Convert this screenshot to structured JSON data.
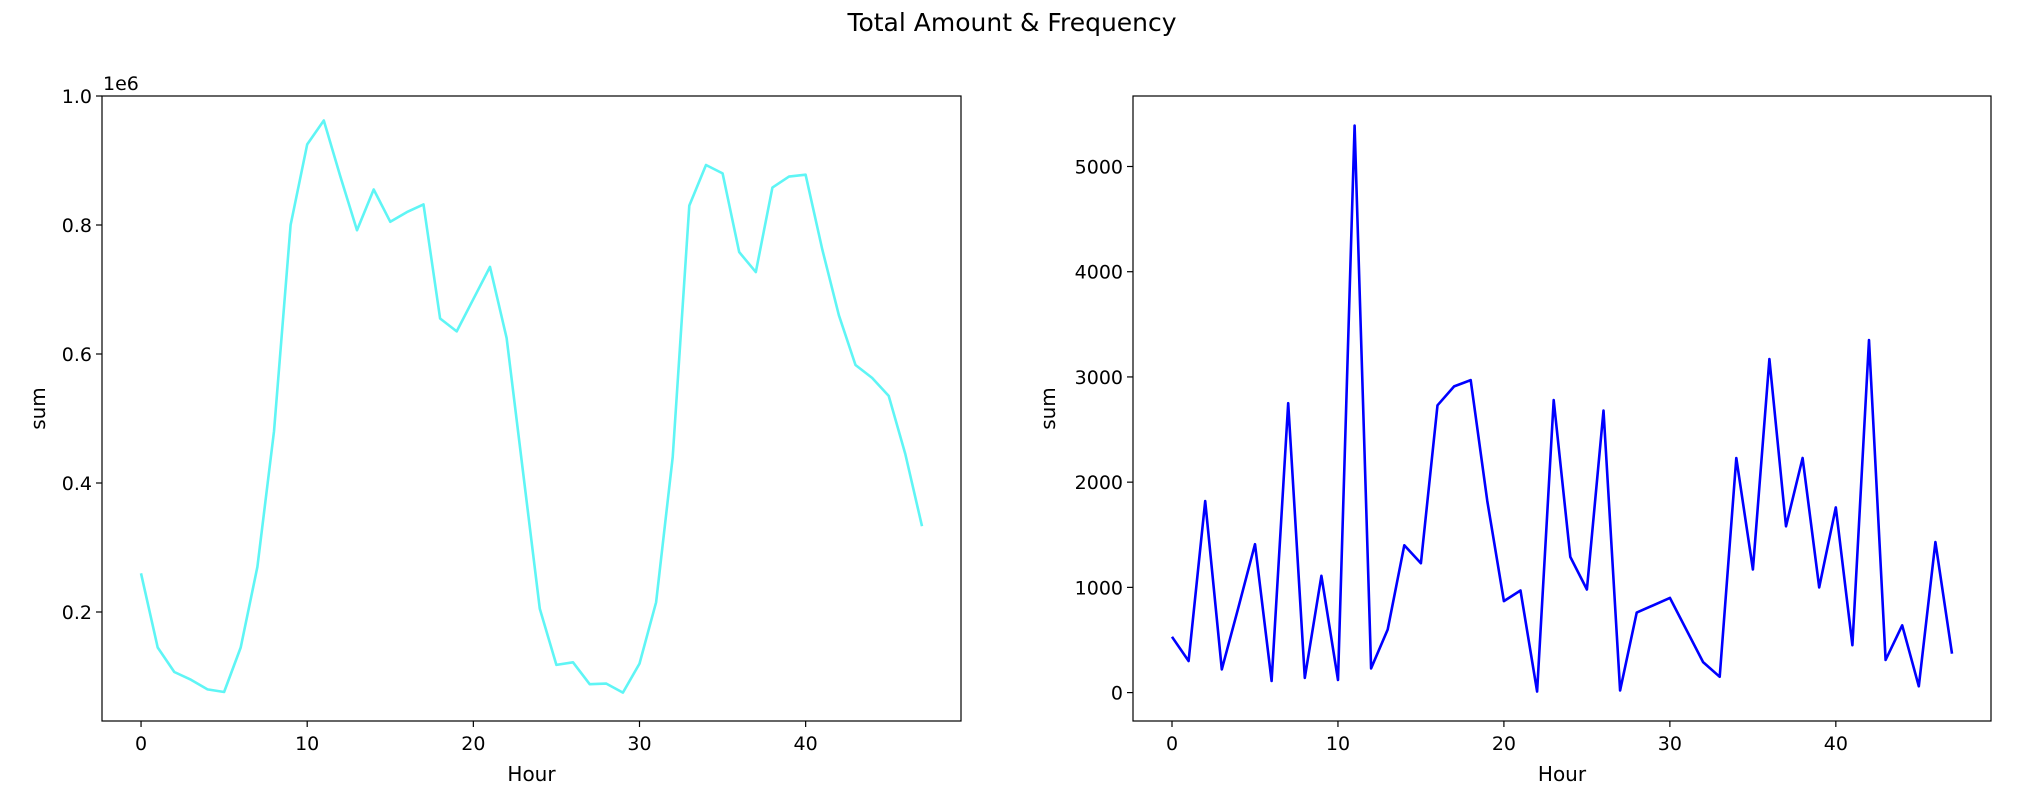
{
  "figure": {
    "title": "Total Amount & Frequency"
  },
  "chart_data": [
    {
      "type": "line",
      "xlabel": "Hour",
      "ylabel": "sum",
      "offset_text": "1e6",
      "xlim": [
        -2.35,
        49.35
      ],
      "ylim": [
        0.031,
        1.0
      ],
      "xticks": [
        0,
        10,
        20,
        30,
        40
      ],
      "yticks": [
        0.2,
        0.4,
        0.6,
        0.8,
        1.0
      ],
      "ytick_labels": [
        "0.2",
        "0.4",
        "0.6",
        "0.8",
        "1.0"
      ],
      "grid": false,
      "color": "#5ff5f5",
      "series": [
        {
          "x": [
            0,
            1,
            2,
            3,
            4,
            5,
            6,
            7,
            8,
            9,
            10,
            11,
            12,
            13,
            14,
            15,
            16,
            17,
            18,
            19,
            20,
            21,
            22,
            23,
            24,
            25,
            26,
            27,
            28,
            29,
            30,
            31,
            32,
            33,
            34,
            35,
            36,
            37,
            38,
            39,
            40,
            41,
            42,
            43,
            44,
            45,
            46,
            47
          ],
          "y": [
            0.26,
            0.145,
            0.107,
            0.095,
            0.08,
            0.076,
            0.145,
            0.27,
            0.48,
            0.8,
            0.925,
            0.962,
            0.875,
            0.792,
            0.855,
            0.805,
            0.82,
            0.832,
            0.655,
            0.635,
            0.685,
            0.735,
            0.625,
            0.415,
            0.205,
            0.118,
            0.122,
            0.088,
            0.089,
            0.075,
            0.12,
            0.215,
            0.44,
            0.83,
            0.893,
            0.88,
            0.758,
            0.727,
            0.858,
            0.875,
            0.878,
            0.762,
            0.66,
            0.583,
            0.563,
            0.535,
            0.445,
            0.333
          ]
        }
      ]
    },
    {
      "type": "line",
      "xlabel": "Hour",
      "ylabel": "sum",
      "xlim": [
        -2.35,
        49.35
      ],
      "ylim": [
        -270,
        5670
      ],
      "xticks": [
        0,
        10,
        20,
        30,
        40
      ],
      "yticks": [
        0,
        1000,
        2000,
        3000,
        4000,
        5000
      ],
      "ytick_labels": [
        "0",
        "1000",
        "2000",
        "3000",
        "4000",
        "5000"
      ],
      "grid": false,
      "color": "#0000ff",
      "series": [
        {
          "x": [
            0,
            1,
            2,
            3,
            4,
            5,
            6,
            7,
            8,
            9,
            10,
            11,
            12,
            13,
            14,
            15,
            16,
            17,
            18,
            19,
            20,
            21,
            22,
            23,
            24,
            25,
            26,
            27,
            28,
            30,
            32,
            33,
            34,
            35,
            36,
            37,
            38,
            39,
            40,
            41,
            42,
            43,
            44,
            45,
            46,
            47
          ],
          "y": [
            530,
            300,
            1820,
            220,
            810,
            1410,
            110,
            2750,
            140,
            1110,
            120,
            5390,
            230,
            600,
            1400,
            1230,
            2730,
            2910,
            2970,
            1820,
            870,
            970,
            10,
            2780,
            1290,
            980,
            2680,
            20,
            760,
            900,
            290,
            150,
            2230,
            1170,
            3170,
            1580,
            2230,
            1000,
            1760,
            450,
            3350,
            310,
            640,
            60,
            1430,
            370
          ]
        }
      ]
    }
  ]
}
